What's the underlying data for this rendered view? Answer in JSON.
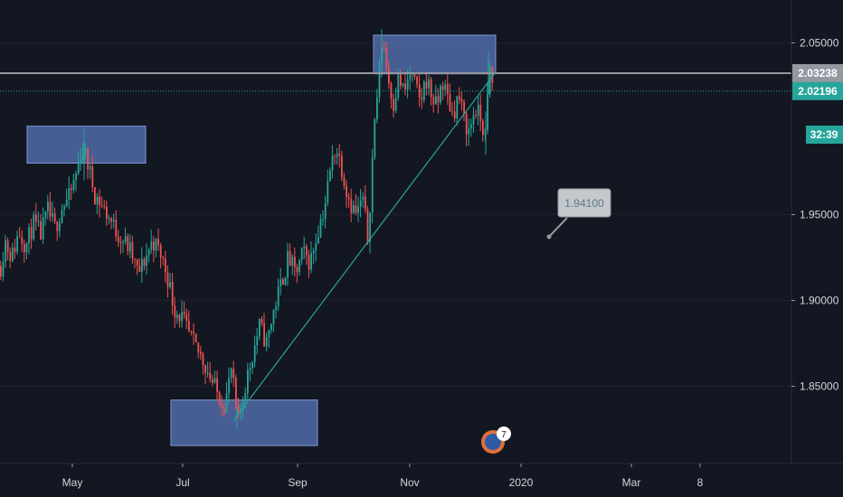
{
  "chart_data": {
    "type": "candlestick",
    "ylim": [
      1.805,
      2.075
    ],
    "y_ticks": [
      {
        "value": 2.05,
        "label": "2.05000"
      },
      {
        "value": 1.95,
        "label": "1.95000"
      },
      {
        "value": 1.9,
        "label": "1.90000"
      },
      {
        "value": 1.85,
        "label": "1.85000"
      }
    ],
    "x_ticks": [
      "May",
      "Jul",
      "Sep",
      "Nov",
      "2020",
      "Mar",
      "8"
    ],
    "price_series": [
      [
        0,
        1.92
      ],
      [
        5,
        1.935
      ],
      [
        12,
        1.925
      ],
      [
        20,
        1.94
      ],
      [
        28,
        1.932
      ],
      [
        36,
        1.945
      ],
      [
        44,
        1.938
      ],
      [
        52,
        1.952
      ],
      [
        60,
        1.942
      ],
      [
        68,
        1.955
      ],
      [
        76,
        1.96
      ],
      [
        84,
        1.975
      ],
      [
        90,
        1.99
      ],
      [
        96,
        1.98
      ],
      [
        104,
        1.962
      ],
      [
        112,
        1.955
      ],
      [
        120,
        1.948
      ],
      [
        128,
        1.94
      ],
      [
        136,
        1.935
      ],
      [
        144,
        1.928
      ],
      [
        152,
        1.915
      ],
      [
        160,
        1.925
      ],
      [
        168,
        1.935
      ],
      [
        176,
        1.928
      ],
      [
        184,
        1.915
      ],
      [
        192,
        1.895
      ],
      [
        200,
        1.89
      ],
      [
        208,
        1.88
      ],
      [
        216,
        1.872
      ],
      [
        224,
        1.865
      ],
      [
        232,
        1.855
      ],
      [
        240,
        1.845
      ],
      [
        248,
        1.84
      ],
      [
        255,
        1.86
      ],
      [
        262,
        1.828
      ],
      [
        270,
        1.85
      ],
      [
        278,
        1.868
      ],
      [
        286,
        1.885
      ],
      [
        294,
        1.875
      ],
      [
        302,
        1.895
      ],
      [
        310,
        1.91
      ],
      [
        318,
        1.925
      ],
      [
        326,
        1.915
      ],
      [
        334,
        1.928
      ],
      [
        342,
        1.922
      ],
      [
        350,
        1.94
      ],
      [
        358,
        1.955
      ],
      [
        364,
        1.975
      ],
      [
        370,
        1.99
      ],
      [
        376,
        1.98
      ],
      [
        382,
        1.965
      ],
      [
        388,
        1.955
      ],
      [
        394,
        1.95
      ],
      [
        400,
        1.96
      ],
      [
        406,
        1.935
      ],
      [
        410,
        1.975
      ],
      [
        414,
        2.01
      ],
      [
        418,
        2.03
      ],
      [
        422,
        2.055
      ],
      [
        428,
        2.03
      ],
      [
        434,
        2.015
      ],
      [
        440,
        2.03
      ],
      [
        446,
        2.02
      ],
      [
        452,
        2.032
      ],
      [
        458,
        2.025
      ],
      [
        464,
        2.015
      ],
      [
        470,
        2.03
      ],
      [
        476,
        2.02
      ],
      [
        482,
        2.012
      ],
      [
        488,
        2.028
      ],
      [
        494,
        2.018
      ],
      [
        500,
        2.008
      ],
      [
        506,
        2.02
      ],
      [
        512,
        2.005
      ],
      [
        518,
        1.998
      ],
      [
        524,
        2.012
      ],
      [
        530,
        2.006
      ],
      [
        536,
        1.995
      ],
      [
        540,
        2.035
      ],
      [
        544,
        2.025
      ]
    ],
    "zones": [
      {
        "name": "supply-zone-may",
        "x": [
          30,
          161
        ],
        "y": [
          1.98,
          2.0015
        ]
      },
      {
        "name": "supply-zone-oct",
        "x": [
          413,
          548
        ],
        "y": [
          2.032,
          2.0545
        ]
      },
      {
        "name": "demand-zone-jul",
        "x": [
          189,
          351
        ],
        "y": [
          1.8155,
          1.842
        ]
      }
    ],
    "trendline": {
      "from": [
        258,
        1.83
      ],
      "to": [
        548,
        2.033
      ]
    },
    "hlines": [
      {
        "value": 2.03238,
        "color": "#9598a1",
        "style": "solid"
      },
      {
        "value": 2.02196,
        "color": "#26a69a",
        "style": "dotted"
      }
    ],
    "price_tags": [
      {
        "value": 2.03238,
        "label": "2.03238",
        "bg": "#9598a1"
      },
      {
        "value": 2.02196,
        "label": "2.02196",
        "bg": "#26a69a"
      }
    ],
    "countdown": "32:39",
    "annotation": {
      "label": "1.94100",
      "value": 1.941
    },
    "colors": {
      "up": "#26a69a",
      "down": "#ef5350",
      "zone": "#5472b4",
      "trend": "#26a69a"
    }
  },
  "badge": {
    "label": "7"
  }
}
